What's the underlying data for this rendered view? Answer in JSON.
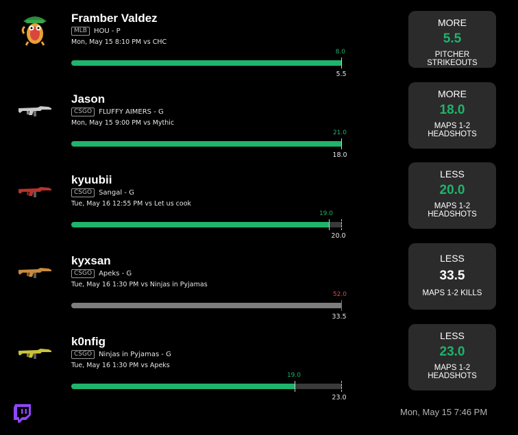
{
  "picks": [
    {
      "player": "Framber Valdez",
      "league": "MLB",
      "team": "HOU - P",
      "time": "Mon, May 15 8:10 PM  vs CHC",
      "current": "8.0",
      "target": "5.5",
      "progress": 1.0,
      "status": "over",
      "icon": "cartoon-mascot-icon",
      "card": {
        "direction": "MORE",
        "line": "5.5",
        "stat": "PITCHER STRIKEOUTS"
      }
    },
    {
      "player": "Jason",
      "league": "CSGO",
      "team": "FLUFFY AIMERS - G",
      "time": "Mon, May 15 9:00 PM  vs Mythic",
      "current": "21.0",
      "target": "18.0",
      "progress": 1.0,
      "status": "over",
      "icon": "rifle-silver-icon",
      "card": {
        "direction": "MORE",
        "line": "18.0",
        "stat": "MAPS 1-2 HEADSHOTS"
      }
    },
    {
      "player": "kyuubii",
      "league": "CSGO",
      "team": "Sangal - G",
      "time": "Tue, May 16 12:55 PM  vs Let us cook",
      "current": "19.0",
      "target": "20.0",
      "progress": 0.95,
      "status": "under",
      "icon": "rifle-red-icon",
      "card": {
        "direction": "LESS",
        "line": "20.0",
        "stat": "MAPS 1-2 HEADSHOTS"
      }
    },
    {
      "player": "kyxsan",
      "league": "CSGO",
      "team": "Apeks - G",
      "time": "Tue, May 16 1:30 PM  vs Ninjas in Pyjamas",
      "current": "52.0",
      "target": "33.5",
      "progress": 1.0,
      "status": "lost",
      "icon": "rifle-orange-icon",
      "card": {
        "direction": "LESS",
        "line": "33.5",
        "stat": "MAPS 1-2 KILLS"
      }
    },
    {
      "player": "k0nfig",
      "league": "CSGO",
      "team": "Ninjas in Pyjamas - G",
      "time": "Tue, May 16 1:30 PM  vs Apeks",
      "current": "19.0",
      "target": "23.0",
      "progress": 0.826,
      "status": "under",
      "icon": "rifle-yellow-icon",
      "card": {
        "direction": "LESS",
        "line": "23.0",
        "stat": "MAPS 1-2 HEADSHOTS"
      }
    }
  ],
  "footer": {
    "timestamp": "Mon, May 15 7:46 PM"
  },
  "colors": {
    "accent": "#1fb46b",
    "miss": "#e04848",
    "card_bg": "#2b2b2b",
    "track": "#3a3a3a"
  }
}
